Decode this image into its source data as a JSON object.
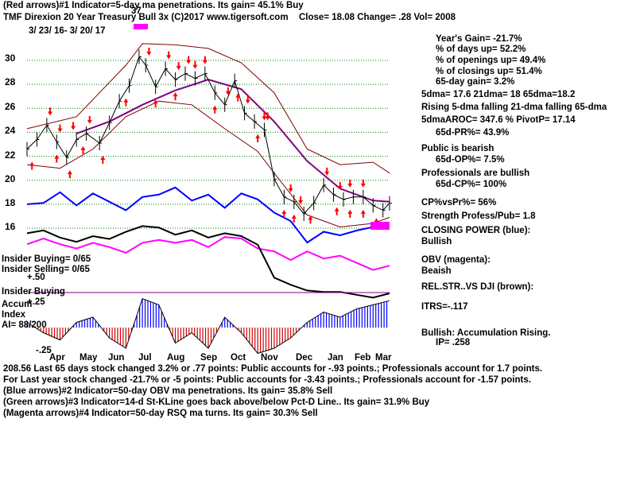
{
  "chart_data": {
    "type": "line",
    "title": "TMF   Direxion 20 Year Treasury Bull 3x  (C)2017 www.tigersoft.com",
    "date_range": "3/ 23/ 16-  3/ 20/ 17",
    "header_quote": "Close=  18.08  Change= .28 Vol=  2008",
    "top_label": "(Red arrows)#1 Indicator=5-day ma penetrations. Its gain= 45.1% Buy",
    "peak_label": "37",
    "x_months": [
      "Apr",
      "May",
      "Jun",
      "Jul",
      "Aug",
      "Sep",
      "Oct",
      "Nov",
      "Dec",
      "Jan",
      "Feb",
      "Mar"
    ],
    "y_ticks": [
      "30",
      "28",
      "26",
      "24",
      "22",
      "20",
      "18",
      "16"
    ],
    "ylim": [
      14.5,
      31.5
    ],
    "price_close": [
      {
        "x": 0,
        "y": 22.6
      },
      {
        "x": 0.3,
        "y": 23.4
      },
      {
        "x": 0.6,
        "y": 24.6
      },
      {
        "x": 0.9,
        "y": 23.2
      },
      {
        "x": 1.2,
        "y": 21.9
      },
      {
        "x": 1.5,
        "y": 23.4
      },
      {
        "x": 1.8,
        "y": 23.9
      },
      {
        "x": 2.2,
        "y": 23.1
      },
      {
        "x": 2.5,
        "y": 24.8
      },
      {
        "x": 2.8,
        "y": 26.6
      },
      {
        "x": 3.1,
        "y": 27.9
      },
      {
        "x": 3.4,
        "y": 30.3
      },
      {
        "x": 3.6,
        "y": 29.6
      },
      {
        "x": 3.9,
        "y": 27.8
      },
      {
        "x": 4.2,
        "y": 29.3
      },
      {
        "x": 4.5,
        "y": 28.4
      },
      {
        "x": 4.8,
        "y": 28.9
      },
      {
        "x": 5.1,
        "y": 28.5
      },
      {
        "x": 5.4,
        "y": 28.9
      },
      {
        "x": 5.7,
        "y": 27.3
      },
      {
        "x": 6.0,
        "y": 26.3
      },
      {
        "x": 6.3,
        "y": 28.3
      },
      {
        "x": 6.6,
        "y": 25.6
      },
      {
        "x": 6.9,
        "y": 24.9
      },
      {
        "x": 7.2,
        "y": 24.2
      },
      {
        "x": 7.5,
        "y": 20.1
      },
      {
        "x": 7.8,
        "y": 18.6
      },
      {
        "x": 8.1,
        "y": 18.2
      },
      {
        "x": 8.4,
        "y": 17.2
      },
      {
        "x": 8.7,
        "y": 18.1
      },
      {
        "x": 9.0,
        "y": 19.6
      },
      {
        "x": 9.3,
        "y": 18.8
      },
      {
        "x": 9.6,
        "y": 18.4
      },
      {
        "x": 9.9,
        "y": 18.6
      },
      {
        "x": 10.2,
        "y": 18.6
      },
      {
        "x": 10.5,
        "y": 17.9
      },
      {
        "x": 10.8,
        "y": 17.5
      },
      {
        "x": 11.0,
        "y": 18.08
      }
    ],
    "ma65": [
      {
        "x": 1.5,
        "y": 23.9
      },
      {
        "x": 2.5,
        "y": 24.9
      },
      {
        "x": 3.5,
        "y": 26.3
      },
      {
        "x": 4.5,
        "y": 27.5
      },
      {
        "x": 5.5,
        "y": 28.4
      },
      {
        "x": 6.5,
        "y": 27.6
      },
      {
        "x": 7.5,
        "y": 24.9
      },
      {
        "x": 8.5,
        "y": 21.6
      },
      {
        "x": 9.5,
        "y": 19.3
      },
      {
        "x": 10.5,
        "y": 18.3
      },
      {
        "x": 11.0,
        "y": 18.2
      }
    ],
    "upper_band": [
      {
        "x": 0,
        "y": 24.3
      },
      {
        "x": 1.5,
        "y": 25.3
      },
      {
        "x": 3.0,
        "y": 29.6
      },
      {
        "x": 3.5,
        "y": 31.4
      },
      {
        "x": 4.5,
        "y": 31.3
      },
      {
        "x": 5.5,
        "y": 31.0
      },
      {
        "x": 6.5,
        "y": 29.8
      },
      {
        "x": 7.5,
        "y": 27.3
      },
      {
        "x": 8.5,
        "y": 22.6
      },
      {
        "x": 9.5,
        "y": 21.3
      },
      {
        "x": 10.5,
        "y": 21.5
      },
      {
        "x": 11.0,
        "y": 20.6
      }
    ],
    "lower_band": [
      {
        "x": 0,
        "y": 21.3
      },
      {
        "x": 1.0,
        "y": 21.0
      },
      {
        "x": 2.0,
        "y": 22.6
      },
      {
        "x": 3.0,
        "y": 25.3
      },
      {
        "x": 4.0,
        "y": 26.6
      },
      {
        "x": 5.0,
        "y": 26.3
      },
      {
        "x": 6.0,
        "y": 24.3
      },
      {
        "x": 7.0,
        "y": 22.4
      },
      {
        "x": 7.5,
        "y": 20.6
      },
      {
        "x": 8.5,
        "y": 17.1
      },
      {
        "x": 9.5,
        "y": 16.1
      },
      {
        "x": 10.5,
        "y": 16.4
      },
      {
        "x": 11.0,
        "y": 16.9
      }
    ],
    "closing_power": [
      {
        "x": 0,
        "y": 18.0
      },
      {
        "x": 0.5,
        "y": 18.1
      },
      {
        "x": 1.0,
        "y": 19.0
      },
      {
        "x": 1.5,
        "y": 17.9
      },
      {
        "x": 2.0,
        "y": 18.9
      },
      {
        "x": 2.5,
        "y": 18.2
      },
      {
        "x": 3.0,
        "y": 17.5
      },
      {
        "x": 3.5,
        "y": 18.6
      },
      {
        "x": 4.0,
        "y": 18.8
      },
      {
        "x": 4.5,
        "y": 19.4
      },
      {
        "x": 5.0,
        "y": 18.3
      },
      {
        "x": 5.5,
        "y": 18.8
      },
      {
        "x": 6.0,
        "y": 17.7
      },
      {
        "x": 6.5,
        "y": 18.9
      },
      {
        "x": 7.0,
        "y": 18.4
      },
      {
        "x": 7.5,
        "y": 17.3
      },
      {
        "x": 8.0,
        "y": 16.6
      },
      {
        "x": 8.5,
        "y": 14.8
      },
      {
        "x": 9.0,
        "y": 15.7
      },
      {
        "x": 9.5,
        "y": 15.4
      },
      {
        "x": 10.0,
        "y": 15.8
      },
      {
        "x": 10.5,
        "y": 16.1
      },
      {
        "x": 11.0,
        "y": 16.0
      }
    ],
    "obv": [
      {
        "x": 0,
        "y": 15.1
      },
      {
        "x": 0.5,
        "y": 15.5
      },
      {
        "x": 1.0,
        "y": 15.1
      },
      {
        "x": 1.5,
        "y": 14.8
      },
      {
        "x": 2.0,
        "y": 15.2
      },
      {
        "x": 2.5,
        "y": 14.9
      },
      {
        "x": 3.0,
        "y": 14.5
      },
      {
        "x": 3.5,
        "y": 15.2
      },
      {
        "x": 4.0,
        "y": 15.4
      },
      {
        "x": 4.5,
        "y": 15.2
      },
      {
        "x": 5.0,
        "y": 15.4
      },
      {
        "x": 5.5,
        "y": 14.9
      },
      {
        "x": 6.0,
        "y": 15.6
      },
      {
        "x": 6.5,
        "y": 15.5
      },
      {
        "x": 7.0,
        "y": 14.8
      },
      {
        "x": 7.5,
        "y": 14.6
      },
      {
        "x": 8.0,
        "y": 14.0
      },
      {
        "x": 8.5,
        "y": 14.6
      },
      {
        "x": 9.0,
        "y": 14.1
      },
      {
        "x": 9.5,
        "y": 14.3
      },
      {
        "x": 10.0,
        "y": 13.8
      },
      {
        "x": 10.5,
        "y": 13.3
      },
      {
        "x": 11.0,
        "y": 13.6
      }
    ],
    "rel_strength": [
      {
        "x": 0,
        "y": 15.7
      },
      {
        "x": 0.5,
        "y": 15.9
      },
      {
        "x": 1.0,
        "y": 15.4
      },
      {
        "x": 1.5,
        "y": 15.1
      },
      {
        "x": 2.0,
        "y": 15.5
      },
      {
        "x": 2.5,
        "y": 15.3
      },
      {
        "x": 3.0,
        "y": 15.8
      },
      {
        "x": 3.5,
        "y": 16.2
      },
      {
        "x": 4.0,
        "y": 16.1
      },
      {
        "x": 4.5,
        "y": 15.6
      },
      {
        "x": 5.0,
        "y": 15.9
      },
      {
        "x": 5.5,
        "y": 15.4
      },
      {
        "x": 6.0,
        "y": 15.7
      },
      {
        "x": 6.5,
        "y": 15.5
      },
      {
        "x": 7.0,
        "y": 14.9
      },
      {
        "x": 7.5,
        "y": 12.6
      },
      {
        "x": 8.0,
        "y": 12.1
      },
      {
        "x": 8.5,
        "y": 11.7
      },
      {
        "x": 9.0,
        "y": 11.6
      },
      {
        "x": 9.5,
        "y": 11.6
      },
      {
        "x": 10.0,
        "y": 11.4
      },
      {
        "x": 10.5,
        "y": 11.2
      },
      {
        "x": 11.0,
        "y": 11.5
      }
    ],
    "accum_index": [
      {
        "x": 0,
        "y": 0.05
      },
      {
        "x": 0.5,
        "y": -0.05
      },
      {
        "x": 1.0,
        "y": -0.12
      },
      {
        "x": 1.5,
        "y": 0.05
      },
      {
        "x": 2.0,
        "y": 0.1
      },
      {
        "x": 2.5,
        "y": -0.1
      },
      {
        "x": 3.0,
        "y": -0.2
      },
      {
        "x": 3.5,
        "y": 0.28
      },
      {
        "x": 4.0,
        "y": 0.22
      },
      {
        "x": 4.5,
        "y": -0.15
      },
      {
        "x": 5.0,
        "y": -0.05
      },
      {
        "x": 5.5,
        "y": -0.2
      },
      {
        "x": 6.0,
        "y": 0.1
      },
      {
        "x": 6.5,
        "y": -0.05
      },
      {
        "x": 7.0,
        "y": -0.25
      },
      {
        "x": 7.5,
        "y": -0.2
      },
      {
        "x": 8.0,
        "y": -0.1
      },
      {
        "x": 8.5,
        "y": 0.05
      },
      {
        "x": 9.0,
        "y": 0.15
      },
      {
        "x": 9.5,
        "y": 0.1
      },
      {
        "x": 10.0,
        "y": 0.18
      },
      {
        "x": 10.5,
        "y": 0.22
      },
      {
        "x": 11.0,
        "y": 0.26
      }
    ],
    "accum_ticks": [
      "+.50",
      "+.25",
      "-.25"
    ],
    "red_up_arrows_x": [
      0.15,
      0.9,
      1.3,
      1.7,
      2.3,
      3.0,
      3.9,
      4.5,
      5.7,
      6.4,
      7.0,
      7.8,
      8.1,
      8.6,
      9.4,
      9.8,
      10.2,
      10.6
    ],
    "red_down_arrows_x": [
      0.7,
      1.0,
      1.4,
      1.9,
      3.7,
      4.3,
      4.6,
      4.9,
      5.1,
      5.4,
      6.1,
      6.7,
      7.2,
      7.3,
      8.0,
      8.3,
      9.1,
      9.5,
      9.8,
      10.2
    ]
  },
  "right_stats": [
    "Year's Gain= -21.7%",
    "% of days up= 52.2%",
    "% of openings up= 49.4%",
    "% of closings up= 51.4%",
    "65-day gain= 3.2%",
    "5dma= 17.6  21dma= 18  65dma=18.2",
    "Rising 5-dma  falling 21-dma  falling 65-dma",
    "5dmaAROC= 347.6 %   PivotP= 17.14",
    "65d-PR%= 43.9%",
    "Public is bearish",
    "65d-OP%= 7.5%",
    "Professionals are bullish",
    "65d-CP%= 100%",
    "CP%vsPr%=  56%",
    "Strength Profess/Pub= 1.8",
    "CLOSING POWER (blue):",
    "Bullish",
    "OBV (magenta):",
    "Beaish",
    "REL.STR..VS DJI (brown):",
    "ITRS=-.117",
    "Bullish: Accumulation Rising.",
    "IP=  .258"
  ],
  "left_labels": {
    "insider_buying": "Insider Buying= 0/65",
    "insider_selling": "Insider Selling= 0/65",
    "insider_buying_bar": "Insider Buying",
    "accum": "Accum",
    "index": "Index",
    "ai": "AI= 88/200"
  },
  "bottom_lines": [
    "208.56 Last 65 days stock changed  3.2% or  .77 points:  Public accounts for -.93 points.;  Professionals account for  1.7 points.",
    "For Last year stock changed -21.7% or -5 points:  Public accounts for -3.43 points.;  Professionals account for -1.57 points.",
    "(Blue arrows)#2 Indicator=50-day OBV ma penetrations. Its gain= 35.8% Sell",
    "(Green arrows)#3 Indicator=14-d St-KLine goes back above/below Pct-D Line.. Its gain= 31.9% Buy",
    "(Magenta arrows)#4 Indicator=50-day RSQ ma turns. Its gain= 30.3% Sell"
  ],
  "colors": {
    "price": "#000000",
    "ma65": "#800080",
    "bands": "#800000",
    "grid": "#008000",
    "closing_power": "#0000ff",
    "obv": "#ff00ff",
    "rel_strength": "#000000",
    "accum_pos": "#0000ff",
    "accum_neg": "#cc0000",
    "arrows": "#ff0000"
  }
}
